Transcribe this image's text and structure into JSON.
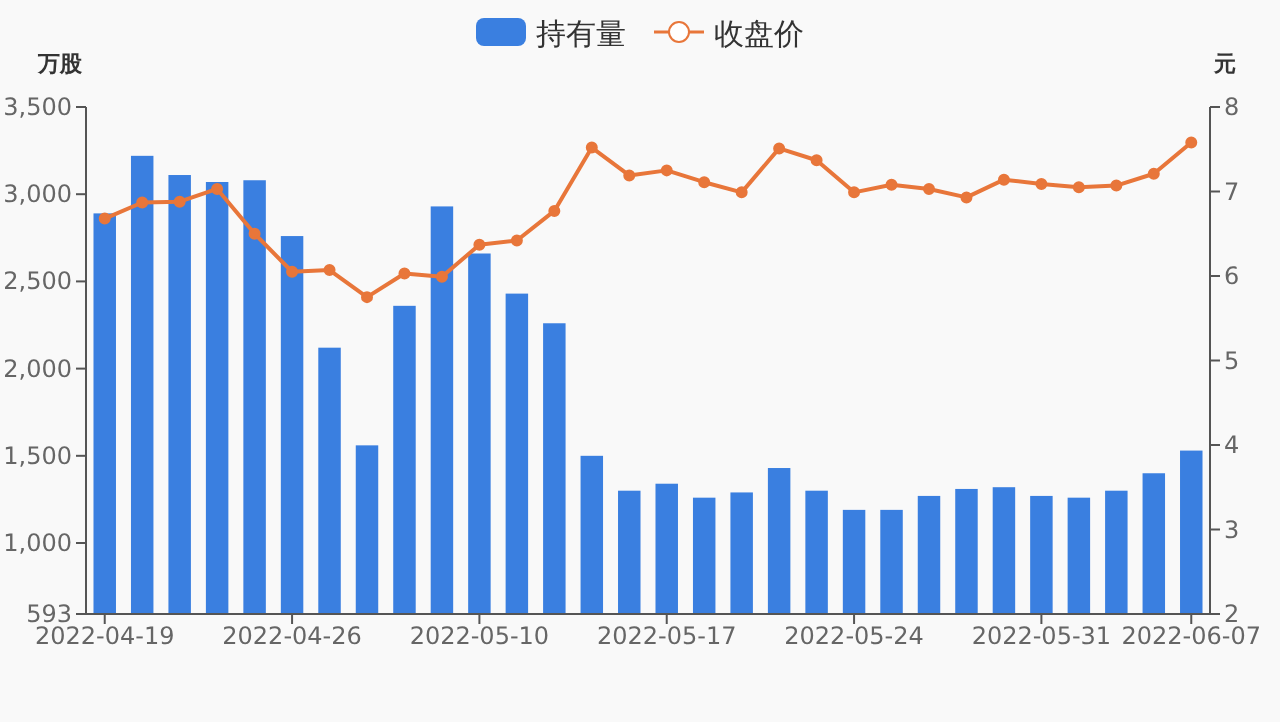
{
  "chart_data": {
    "type": "bar",
    "categories": [
      "2022-04-19",
      null,
      null,
      null,
      null,
      "2022-04-26",
      null,
      null,
      null,
      null,
      "2022-05-10",
      null,
      null,
      null,
      null,
      "2022-05-17",
      null,
      null,
      null,
      null,
      "2022-05-24",
      null,
      null,
      null,
      null,
      "2022-05-31",
      null,
      null,
      null,
      "2022-06-07"
    ],
    "ylabel": "万股",
    "y2label": "元",
    "legend": "top",
    "grid": false,
    "ylim": [
      593,
      3500
    ],
    "yticks": [
      593,
      {
        "value": 1000,
        "label": "1,000"
      },
      {
        "value": 1500,
        "label": "1,500"
      },
      {
        "value": 2000,
        "label": "2,000"
      },
      {
        "value": 2500,
        "label": "2,500"
      },
      {
        "value": 3000,
        "label": "3,000"
      },
      {
        "value": 3500,
        "label": "3,500"
      }
    ],
    "y2lim": [
      2,
      8
    ],
    "y2ticks": [
      2,
      3,
      4,
      5,
      6,
      7,
      8
    ],
    "series": [
      {
        "name": "持有量",
        "type": "bar",
        "color": "#3a7fe0",
        "values": [
          2890,
          3220,
          3110,
          3070,
          3080,
          2760,
          2120,
          1560,
          2360,
          2930,
          2660,
          2430,
          2260,
          1500,
          1300,
          1340,
          1260,
          1290,
          1430,
          1300,
          1190,
          1190,
          1270,
          1310,
          1320,
          1270,
          1260,
          1300,
          1400,
          1530
        ]
      },
      {
        "name": "收盘价",
        "type": "line",
        "axis": "y2",
        "color": "#e8763a",
        "marker": "circle",
        "values": [
          6.68,
          6.87,
          6.88,
          7.03,
          6.5,
          6.05,
          6.07,
          5.75,
          6.03,
          5.99,
          6.37,
          6.42,
          6.77,
          7.52,
          7.19,
          7.25,
          7.11,
          6.99,
          7.51,
          7.37,
          6.99,
          7.08,
          7.03,
          6.93,
          7.14,
          7.09,
          7.05,
          7.07,
          7.21,
          7.58
        ]
      }
    ]
  }
}
